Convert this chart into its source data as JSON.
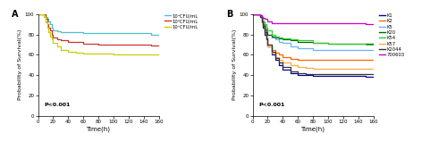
{
  "panel_A": {
    "title": "A",
    "xlabel": "Time(h)",
    "ylabel": "Probability of Survival(%)",
    "xlim": [
      0,
      160
    ],
    "ylim": [
      0,
      100
    ],
    "xticks": [
      0,
      20,
      40,
      60,
      80,
      100,
      120,
      140,
      160
    ],
    "yticks": [
      0,
      20,
      40,
      60,
      80,
      100
    ],
    "pvalue": "P<0.001",
    "series": [
      {
        "label": "10⁵CFU/mL",
        "color": "#4dbfcf",
        "times": [
          0,
          8,
          10,
          12,
          14,
          16,
          18,
          20,
          25,
          30,
          40,
          50,
          60,
          80,
          100,
          120,
          150,
          160
        ],
        "survival": [
          100,
          100,
          97,
          95,
          93,
          90,
          87,
          84,
          83,
          82,
          82,
          82,
          81,
          81,
          81,
          81,
          80,
          80
        ]
      },
      {
        "label": "10⁶CFU/mL",
        "color": "#cc3333",
        "times": [
          0,
          8,
          10,
          12,
          14,
          16,
          18,
          20,
          25,
          30,
          40,
          50,
          60,
          80,
          100,
          120,
          150,
          160
        ],
        "survival": [
          100,
          100,
          95,
          90,
          87,
          84,
          80,
          77,
          75,
          74,
          73,
          73,
          71,
          70,
          70,
          70,
          69,
          69
        ]
      },
      {
        "label": "10⁷CFU/mL",
        "color": "#cccc00",
        "times": [
          0,
          8,
          10,
          12,
          14,
          16,
          18,
          20,
          25,
          30,
          40,
          50,
          60,
          80,
          100,
          120,
          150,
          160
        ],
        "survival": [
          100,
          97,
          92,
          87,
          82,
          78,
          75,
          72,
          68,
          65,
          63,
          62,
          61,
          61,
          60,
          60,
          60,
          60
        ]
      }
    ]
  },
  "panel_B": {
    "title": "B",
    "xlabel": "Time(h)",
    "ylabel": "Probability of Survival(%)",
    "xlim": [
      0,
      160
    ],
    "ylim": [
      0,
      100
    ],
    "xticks": [
      0,
      20,
      40,
      60,
      80,
      100,
      120,
      140,
      160
    ],
    "yticks": [
      0,
      20,
      40,
      60,
      80,
      100
    ],
    "pvalue": "P<0.001",
    "series": [
      {
        "label": "K1",
        "color": "#000099",
        "times": [
          0,
          8,
          10,
          12,
          14,
          16,
          18,
          20,
          25,
          30,
          35,
          40,
          50,
          60,
          80,
          100,
          150,
          160
        ],
        "survival": [
          100,
          100,
          97,
          92,
          87,
          80,
          75,
          68,
          60,
          55,
          50,
          45,
          42,
          40,
          39,
          39,
          38,
          38
        ]
      },
      {
        "label": "K2",
        "color": "#ff6600",
        "times": [
          0,
          8,
          10,
          12,
          14,
          16,
          18,
          20,
          25,
          30,
          35,
          40,
          50,
          60,
          80,
          100,
          150,
          160
        ],
        "survival": [
          100,
          100,
          97,
          92,
          88,
          82,
          76,
          70,
          65,
          62,
          60,
          58,
          56,
          55,
          55,
          55,
          55,
          55
        ]
      },
      {
        "label": "K5",
        "color": "#66b3ff",
        "times": [
          0,
          8,
          10,
          12,
          14,
          16,
          18,
          20,
          25,
          30,
          35,
          40,
          50,
          60,
          80,
          100,
          150,
          160
        ],
        "survival": [
          100,
          100,
          98,
          95,
          92,
          88,
          84,
          80,
          77,
          75,
          73,
          72,
          68,
          66,
          65,
          65,
          65,
          65
        ]
      },
      {
        "label": "K20",
        "color": "#006600",
        "times": [
          0,
          8,
          10,
          12,
          14,
          16,
          18,
          20,
          25,
          30,
          35,
          40,
          50,
          60,
          80,
          100,
          150,
          160
        ],
        "survival": [
          100,
          100,
          98,
          95,
          90,
          85,
          82,
          80,
          78,
          77,
          76,
          75,
          74,
          73,
          72,
          71,
          71,
          71
        ]
      },
      {
        "label": "K54",
        "color": "#33cc33",
        "times": [
          0,
          8,
          10,
          12,
          14,
          16,
          18,
          20,
          25,
          30,
          35,
          40,
          50,
          60,
          80,
          100,
          150,
          160
        ],
        "survival": [
          100,
          100,
          98,
          96,
          93,
          90,
          87,
          84,
          80,
          78,
          77,
          76,
          75,
          74,
          72,
          71,
          70,
          70
        ]
      },
      {
        "label": "K57",
        "color": "#ffaa44",
        "times": [
          0,
          8,
          10,
          12,
          14,
          16,
          18,
          20,
          25,
          30,
          35,
          40,
          50,
          60,
          70,
          80,
          100,
          150,
          160
        ],
        "survival": [
          100,
          100,
          97,
          93,
          88,
          82,
          76,
          68,
          62,
          58,
          55,
          52,
          50,
          48,
          47,
          46,
          46,
          46,
          46
        ]
      },
      {
        "label": "K2044",
        "color": "#333333",
        "times": [
          0,
          8,
          10,
          12,
          14,
          16,
          18,
          20,
          25,
          30,
          35,
          40,
          50,
          60,
          70,
          80,
          100,
          150,
          160
        ],
        "survival": [
          100,
          100,
          97,
          93,
          88,
          82,
          76,
          70,
          63,
          57,
          52,
          48,
          44,
          42,
          41,
          41,
          41,
          41,
          41
        ]
      },
      {
        "label": "700603",
        "color": "#cc00cc",
        "times": [
          0,
          8,
          10,
          12,
          14,
          16,
          20,
          25,
          150,
          160
        ],
        "survival": [
          100,
          100,
          99,
          97,
          96,
          95,
          93,
          91,
          90,
          90
        ]
      }
    ]
  },
  "fig_width": 5.0,
  "fig_height": 1.58,
  "dpi": 100
}
